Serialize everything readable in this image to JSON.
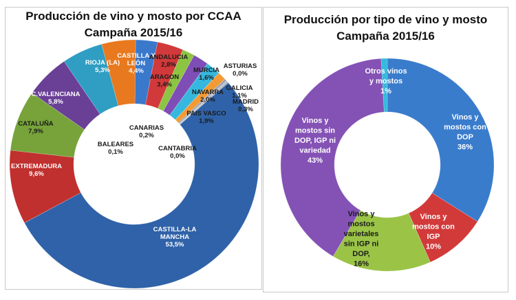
{
  "chart_data": [
    {
      "type": "pie",
      "variant": "donut",
      "title": "Producción de vino y mosto por CCAA",
      "subtitle": "Campaña 2015/16",
      "unit": "%",
      "slices": [
        {
          "name": "CASTILLA-LA MANCHA",
          "value": 53.5,
          "label": "53,5%",
          "color": "#2f62a8",
          "text_color": "#ffffff"
        },
        {
          "name": "EXTREMADURA",
          "value": 9.6,
          "label": "9,6%",
          "color": "#c0302e",
          "text_color": "#ffffff"
        },
        {
          "name": "CATALUÑA",
          "value": 7.9,
          "label": "7,9%",
          "color": "#77a33a",
          "text_color": "#1a1a1a"
        },
        {
          "name": "C.VALENCIANA",
          "value": 5.8,
          "label": "5,8%",
          "color": "#6a3f96",
          "text_color": "#ffffff"
        },
        {
          "name": "RIOJA (LA)",
          "value": 5.3,
          "label": "5,3%",
          "color": "#2f9ec2",
          "text_color": "#ffffff"
        },
        {
          "name": "CASTILLA Y LEÓN",
          "value": 4.4,
          "label": "4,4%",
          "color": "#e8791e",
          "text_color": "#ffffff"
        },
        {
          "name": "ANDALUCIA",
          "value": 2.8,
          "label": "2,8%",
          "color": "#3a78cc",
          "text_color": "#1a1a1a"
        },
        {
          "name": "ARAGON",
          "value": 3.4,
          "label": "3,4%",
          "color": "#d2393a",
          "text_color": "#1a1a1a"
        },
        {
          "name": "MURCIA",
          "value": 1.6,
          "label": "1,6%",
          "color": "#8dc442",
          "text_color": "#1a1a1a"
        },
        {
          "name": "NAVARRA",
          "value": 2.0,
          "label": "2,0%",
          "color": "#7e4db5",
          "text_color": "#1a1a1a"
        },
        {
          "name": "PAIS VASCO",
          "value": 1.9,
          "label": "1,9%",
          "color": "#36b8de",
          "text_color": "#1a1a1a"
        },
        {
          "name": "GALICIA",
          "value": 1.1,
          "label": "1,1%",
          "color": "#f49a34",
          "text_color": "#1a1a1a"
        },
        {
          "name": "MADRID",
          "value": 0.3,
          "label": "0,3%",
          "color": "#9aa3b0",
          "text_color": "#1a1a1a"
        },
        {
          "name": "CANARIAS",
          "value": 0.2,
          "label": "0,2%",
          "color": "#b9c0cc",
          "text_color": "#1a1a1a"
        },
        {
          "name": "BALEARES",
          "value": 0.1,
          "label": "0,1%",
          "color": "#8c8c8c",
          "text_color": "#1a1a1a"
        },
        {
          "name": "ASTURIAS",
          "value": 0.0,
          "label": "0,0%",
          "color": "#cccccc",
          "text_color": "#1a1a1a"
        },
        {
          "name": "CANTABRIA",
          "value": 0.0,
          "label": "0,0%",
          "color": "#dddddd",
          "text_color": "#1a1a1a"
        }
      ]
    },
    {
      "type": "pie",
      "variant": "donut",
      "title": "Producción por tipo de vino y mosto",
      "subtitle": "Campaña 2015/16",
      "unit": "%",
      "slices": [
        {
          "name": "Vinos y mostos con DOP",
          "value": 36,
          "label": "36%",
          "color": "#3a7ccc",
          "text_color": "#ffffff"
        },
        {
          "name": "Vinos y mostos con IGP",
          "value": 10,
          "label": "10%",
          "color": "#d23a3a",
          "text_color": "#ffffff"
        },
        {
          "name": "Vinos y mostos varietales sin IGP ni DOP,",
          "value": 16,
          "label": "16%",
          "color": "#9bc447",
          "text_color": "#1a1a1a"
        },
        {
          "name": "Vinos y mostos sin DOP, IGP ni variedad",
          "value": 43,
          "label": "43%",
          "color": "#8452b5",
          "text_color": "#ffffff"
        },
        {
          "name": "Otros vinos y mostos",
          "value": 1,
          "label": "1%",
          "color": "#37b9dd",
          "text_color": "#ffffff"
        }
      ]
    }
  ]
}
